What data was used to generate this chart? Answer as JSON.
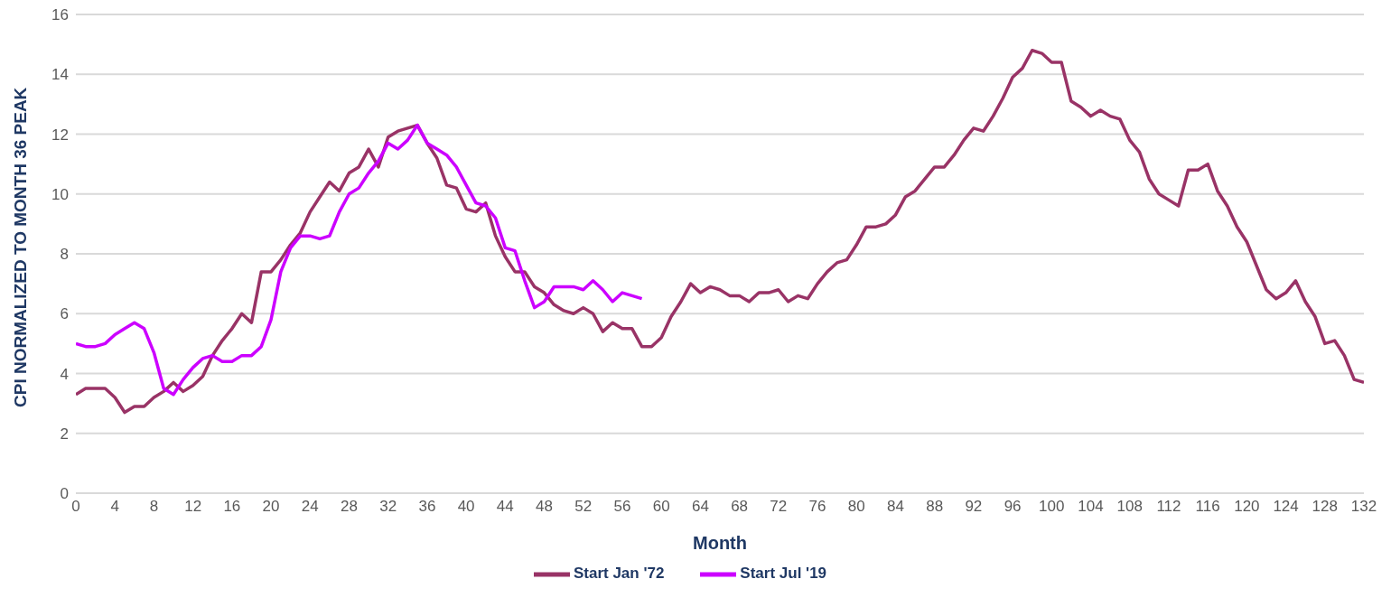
{
  "chart_data": {
    "type": "line",
    "xlabel": "Month",
    "ylabel": "CPI NORMALIZED TO MONTH 36 PEAK",
    "x": [
      0,
      1,
      2,
      3,
      4,
      5,
      6,
      7,
      8,
      9,
      10,
      11,
      12,
      13,
      14,
      15,
      16,
      17,
      18,
      19,
      20,
      21,
      22,
      23,
      24,
      25,
      26,
      27,
      28,
      29,
      30,
      31,
      32,
      33,
      34,
      35,
      36,
      37,
      38,
      39,
      40,
      41,
      42,
      43,
      44,
      45,
      46,
      47,
      48,
      49,
      50,
      51,
      52,
      53,
      54,
      55,
      56,
      57,
      58,
      59,
      60,
      61,
      62,
      63,
      64,
      65,
      66,
      67,
      68,
      69,
      70,
      71,
      72,
      73,
      74,
      75,
      76,
      77,
      78,
      79,
      80,
      81,
      82,
      83,
      84,
      85,
      86,
      87,
      88,
      89,
      90,
      91,
      92,
      93,
      94,
      95,
      96,
      97,
      98,
      99,
      100,
      101,
      102,
      103,
      104,
      105,
      106,
      107,
      108,
      109,
      110,
      111,
      112,
      113,
      114,
      115,
      116,
      117,
      118,
      119,
      120,
      121,
      122,
      123,
      124,
      125,
      126,
      127,
      128,
      129,
      130,
      131,
      132
    ],
    "series": [
      {
        "name": "Start Jan '72",
        "color": "#993366",
        "values": [
          3.3,
          3.5,
          3.5,
          3.5,
          3.2,
          2.7,
          2.9,
          2.9,
          3.2,
          3.4,
          3.7,
          3.4,
          3.6,
          3.9,
          4.6,
          5.1,
          5.5,
          6.0,
          5.7,
          7.4,
          7.4,
          7.8,
          8.3,
          8.7,
          9.4,
          9.9,
          10.4,
          10.1,
          10.7,
          10.9,
          11.5,
          10.9,
          11.9,
          12.1,
          12.2,
          12.3,
          11.7,
          11.2,
          10.3,
          10.2,
          9.5,
          9.4,
          9.7,
          8.6,
          7.9,
          7.4,
          7.4,
          6.9,
          6.7,
          6.3,
          6.1,
          6.0,
          6.2,
          6.0,
          5.4,
          5.7,
          5.5,
          5.5,
          4.9,
          4.9,
          5.2,
          5.9,
          6.4,
          7.0,
          6.7,
          6.9,
          6.8,
          6.6,
          6.6,
          6.4,
          6.7,
          6.7,
          6.8,
          6.4,
          6.6,
          6.5,
          7.0,
          7.4,
          7.7,
          7.8,
          8.3,
          8.9,
          8.9,
          9.0,
          9.3,
          9.9,
          10.1,
          10.5,
          10.9,
          10.9,
          11.3,
          11.8,
          12.2,
          12.1,
          12.6,
          13.2,
          13.9,
          14.2,
          14.8,
          14.7,
          14.4,
          14.4,
          13.1,
          12.9,
          12.6,
          12.8,
          12.6,
          12.5,
          11.8,
          11.4,
          10.5,
          10.0,
          9.8,
          9.6,
          10.8,
          10.8,
          11.0,
          10.1,
          9.6,
          8.9,
          8.4,
          7.6,
          6.8,
          6.5,
          6.7,
          7.1,
          6.4,
          5.9,
          5.0,
          5.1,
          4.6,
          3.8,
          3.7
        ]
      },
      {
        "name": "Start Jul '19",
        "color": "#cc00ff",
        "x": [
          0,
          1,
          2,
          3,
          4,
          5,
          6,
          7,
          8,
          9,
          10,
          11,
          12,
          13,
          14,
          15,
          16,
          17,
          18,
          19,
          20,
          21,
          22,
          23,
          24,
          25,
          26,
          27,
          28,
          29,
          30,
          31,
          32,
          33,
          34,
          35,
          36,
          37,
          38,
          39,
          40,
          41,
          42,
          43,
          44,
          45,
          46,
          47,
          48,
          49,
          50,
          51,
          52,
          53,
          54,
          55,
          56,
          57,
          58
        ],
        "values": [
          5.0,
          4.9,
          4.9,
          5.0,
          5.3,
          5.5,
          5.7,
          5.5,
          4.7,
          3.5,
          3.3,
          3.8,
          4.2,
          4.5,
          4.6,
          4.4,
          4.4,
          4.6,
          4.6,
          4.9,
          5.8,
          7.4,
          8.2,
          8.6,
          8.6,
          8.5,
          8.6,
          9.4,
          10.0,
          10.2,
          10.7,
          11.1,
          11.7,
          11.5,
          11.8,
          12.3,
          11.7,
          11.5,
          11.3,
          10.9,
          10.3,
          9.7,
          9.6,
          9.2,
          8.2,
          8.1,
          7.1,
          6.2,
          6.4,
          6.9,
          6.9,
          6.9,
          6.8,
          7.1,
          6.8,
          6.4,
          6.7,
          6.6,
          6.5
        ]
      }
    ],
    "xlim": [
      0,
      132
    ],
    "xticks": [
      0,
      4,
      8,
      12,
      16,
      20,
      24,
      28,
      32,
      36,
      40,
      44,
      48,
      52,
      56,
      60,
      64,
      68,
      72,
      76,
      80,
      84,
      88,
      92,
      96,
      100,
      104,
      108,
      112,
      116,
      120,
      124,
      128,
      132
    ],
    "ylim": [
      0,
      16
    ],
    "yticks": [
      0,
      2,
      4,
      6,
      8,
      10,
      12,
      14,
      16
    ],
    "grid": "y",
    "legend": "bottom",
    "marker": "none",
    "line_style": "solid"
  }
}
